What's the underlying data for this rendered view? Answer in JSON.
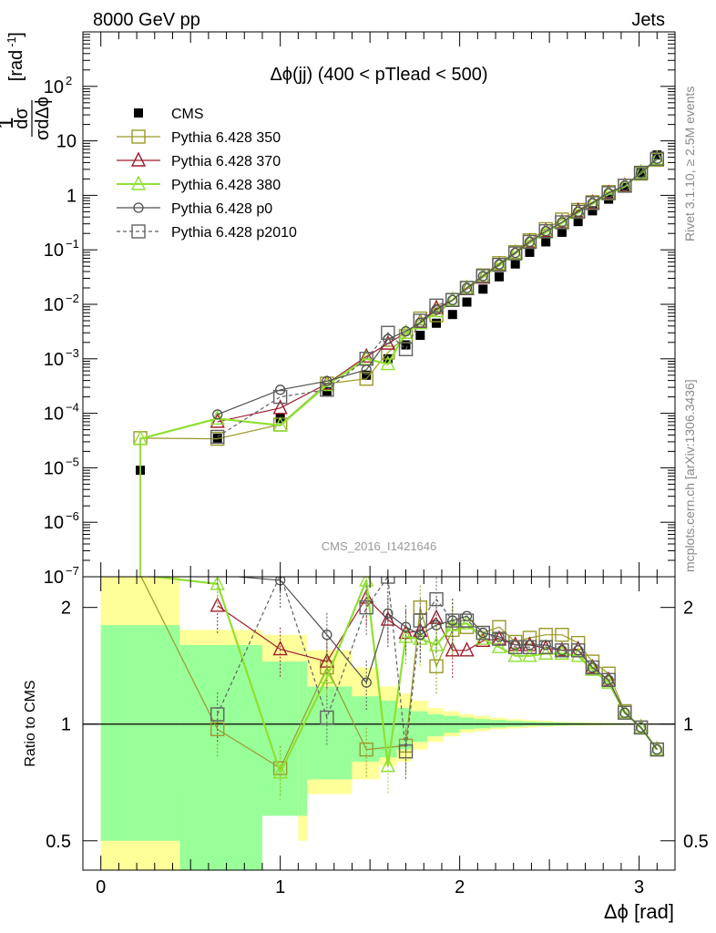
{
  "header": {
    "left": "8000 GeV pp",
    "right": "Jets"
  },
  "side_labels": {
    "rivet": "Rivet 3.1.10, ≥ 2.5M events",
    "mcplots": "mcplots.cern.ch [arXiv:1306.3436]"
  },
  "watermark": "CMS_2016_I1421646",
  "colors": {
    "cms": "#000000",
    "p350": "#9a9a2a",
    "p370": "#a01c2e",
    "p380": "#8fe030",
    "p0": "#505050",
    "p2010": "#606060",
    "band_green": "#99ff99",
    "band_yellow": "#ffff99"
  },
  "chart_data": [
    {
      "type": "line",
      "panel": "main",
      "title": "Δϕ(jj) (400 < pTlead <  500)",
      "xlabel": "Δϕ [rad]",
      "ylabel": "1/σ dσ/dΔϕ [rad⁻¹]",
      "ylabel_parts": {
        "one": "1",
        "dsigma": "dσ",
        "sigma_dphi": "σdΔϕ",
        "units": "[rad",
        "units_exp": "-1",
        "units_close": "]"
      },
      "xlim": [
        -0.1,
        3.2
      ],
      "ylim": [
        1e-07,
        1000
      ],
      "log_y": true,
      "grid": false,
      "legend_position": "top-left",
      "x_ticks": [
        "0",
        "1",
        "2",
        "3"
      ],
      "y_ticks": [
        {
          "value": 1e-07,
          "base": "10",
          "exp": "−7"
        },
        {
          "value": 1e-06,
          "base": "10",
          "exp": "−6"
        },
        {
          "value": 1e-05,
          "base": "10",
          "exp": "−5"
        },
        {
          "value": 0.0001,
          "base": "10",
          "exp": "−4"
        },
        {
          "value": 0.001,
          "base": "10",
          "exp": "−3"
        },
        {
          "value": 0.01,
          "base": "10",
          "exp": "−2"
        },
        {
          "value": 0.1,
          "base": "10",
          "exp": "−1"
        },
        {
          "value": 1,
          "base": "1",
          "exp": ""
        },
        {
          "value": 10,
          "base": "10",
          "exp": ""
        },
        {
          "value": 100,
          "base": "10",
          "exp": "2"
        }
      ],
      "x": [
        0.22,
        0.65,
        1.0,
        1.26,
        1.48,
        1.6,
        1.7,
        1.78,
        1.87,
        1.96,
        2.04,
        2.13,
        2.22,
        2.31,
        2.39,
        2.48,
        2.57,
        2.66,
        2.74,
        2.83,
        2.92,
        3.01,
        3.1
      ],
      "series": [
        {
          "name": "CMS",
          "key": "cms",
          "marker": "filled-square",
          "values": [
            9e-06,
            3.5e-05,
            8e-05,
            0.00025,
            0.0005,
            0.001,
            0.0018,
            0.0027,
            0.0045,
            0.0065,
            0.011,
            0.019,
            0.032,
            0.055,
            0.09,
            0.14,
            0.21,
            0.33,
            0.52,
            0.85,
            1.4,
            2.6,
            5.5
          ]
        },
        {
          "name": "Pythia 6.428 350",
          "key": "p350",
          "marker": "open-square",
          "values": [
            3.5e-05,
            3.4e-05,
            6.2e-05,
            0.00035,
            0.00043,
            0.0013,
            0.0026,
            0.0055,
            0.0063,
            0.012,
            0.02,
            0.034,
            0.057,
            0.091,
            0.15,
            0.24,
            0.36,
            0.54,
            0.75,
            1.15,
            1.5,
            2.5,
            4.5
          ]
        },
        {
          "name": "Pythia 6.428 370",
          "key": "p370",
          "marker": "open-triangle",
          "values": [
            null,
            7e-05,
            0.000125,
            0.00035,
            0.0011,
            0.0019,
            0.003,
            0.0047,
            0.0085,
            0.012,
            0.019,
            0.031,
            0.053,
            0.088,
            0.14,
            0.22,
            0.32,
            0.52,
            0.73,
            1.1,
            1.5,
            2.6,
            4.7
          ]
        },
        {
          "name": "Pythia 6.428 380",
          "key": "p380",
          "marker": "open-triangle",
          "values": [
            3.4e-05,
            8e-05,
            6e-05,
            0.00033,
            0.001,
            0.0008,
            0.003,
            0.0045,
            0.0075,
            0.012,
            0.02,
            0.032,
            0.052,
            0.086,
            0.135,
            0.21,
            0.31,
            0.48,
            0.7,
            1.05,
            1.45,
            2.6,
            4.7
          ]
        },
        {
          "name": "Pythia 6.428 p0",
          "key": "p0",
          "marker": "open-circle",
          "values": [
            null,
            9.5e-05,
            0.00027,
            0.00039,
            0.00063,
            0.0023,
            0.0032,
            0.0046,
            0.008,
            0.012,
            0.02,
            0.033,
            0.054,
            0.088,
            0.14,
            0.22,
            0.32,
            0.5,
            0.72,
            1.1,
            1.5,
            2.6,
            4.7
          ]
        },
        {
          "name": "Pythia 6.428 p2010",
          "key": "p2010",
          "marker": "open-square",
          "dashed": true,
          "values": [
            null,
            3.7e-05,
            0.0002,
            0.00027,
            0.001,
            0.003,
            0.0015,
            0.005,
            0.0095,
            0.012,
            0.02,
            0.033,
            0.053,
            0.086,
            0.14,
            0.22,
            0.32,
            0.5,
            0.72,
            1.1,
            1.5,
            2.6,
            4.7
          ]
        }
      ]
    },
    {
      "type": "line",
      "panel": "ratio",
      "ylabel": "Ratio to CMS",
      "xlabel": "Δϕ [rad]",
      "xlim": [
        -0.1,
        3.2
      ],
      "ylim": [
        0.42,
        2.4
      ],
      "log_y": true,
      "y_ticks": [
        "0.5",
        "1",
        "2"
      ],
      "x_ticks": [
        "0",
        "1",
        "2",
        "3"
      ],
      "bands": {
        "edges": [
          0.0,
          0.44,
          0.9,
          1.1,
          1.15,
          1.4,
          1.55,
          1.65,
          1.73,
          1.82,
          1.91,
          2.0,
          2.08,
          2.17,
          2.26,
          2.35,
          2.43,
          2.52,
          2.61,
          2.7,
          2.79,
          2.88,
          2.97,
          3.14
        ],
        "green": [
          0.5,
          0.42,
          0.58,
          0.58,
          0.72,
          0.8,
          0.82,
          0.86,
          0.9,
          0.93,
          0.95,
          0.97,
          0.975,
          0.98,
          0.985,
          0.99,
          0.99,
          0.992,
          0.994,
          0.995,
          0.996,
          0.997,
          0.998
        ],
        "green_hi": [
          1.8,
          1.6,
          1.45,
          1.45,
          1.25,
          1.18,
          1.15,
          1.1,
          1.08,
          1.06,
          1.05,
          1.04,
          1.03,
          1.025,
          1.02,
          1.015,
          1.012,
          1.01,
          1.008,
          1.006,
          1.005,
          1.004,
          1.003
        ],
        "yellow": [
          0.42,
          0.66,
          0.65,
          0.5,
          0.66,
          0.72,
          0.78,
          0.8,
          0.86,
          0.9,
          0.93,
          0.95,
          0.96,
          0.97,
          0.975,
          0.98,
          0.985,
          0.988,
          0.99,
          0.992,
          0.994,
          0.995,
          0.996
        ],
        "yellow_hi": [
          2.4,
          1.75,
          1.7,
          1.7,
          1.55,
          1.4,
          1.25,
          1.2,
          1.15,
          1.1,
          1.08,
          1.06,
          1.05,
          1.04,
          1.03,
          1.025,
          1.02,
          1.015,
          1.012,
          1.01,
          1.008,
          1.006,
          1.004
        ]
      },
      "series": [
        {
          "name": "Pythia 6.428 350",
          "key": "p350",
          "values": [
            3.9,
            0.97,
            0.77,
            1.4,
            0.86,
            null,
            0.88,
            2.0,
            1.41,
            1.75,
            1.78,
            1.72,
            1.78,
            1.63,
            1.67,
            1.7,
            1.7,
            1.62,
            1.45,
            1.35,
            1.08,
            0.98,
            0.86
          ]
        },
        {
          "name": "Pythia 6.428 370",
          "key": "p370",
          "values": [
            null,
            2.02,
            1.56,
            1.45,
            2.12,
            1.86,
            1.72,
            1.74,
            1.88,
            1.55,
            1.55,
            1.64,
            1.66,
            1.6,
            1.6,
            1.57,
            1.55,
            1.56,
            1.4,
            1.3,
            1.07,
            0.98,
            0.86
          ]
        },
        {
          "name": "Pythia 6.428 380",
          "key": "p380",
          "values": [
            3.8,
            2.3,
            0.75,
            1.32,
            2.35,
            0.78,
            1.68,
            1.66,
            1.6,
            1.8,
            1.82,
            1.66,
            1.58,
            1.5,
            1.5,
            1.52,
            1.52,
            1.5,
            1.38,
            1.28,
            1.07,
            0.98,
            0.86
          ]
        },
        {
          "name": "Pythia 6.428 p0",
          "key": "p0",
          "values": [
            null,
            2.7,
            2.35,
            1.7,
            1.28,
            1.93,
            1.78,
            1.7,
            1.8,
            1.85,
            1.9,
            1.72,
            1.68,
            1.6,
            1.6,
            1.6,
            1.55,
            1.55,
            1.4,
            1.3,
            1.07,
            0.98,
            0.86
          ]
        },
        {
          "name": "Pythia 6.428 p2010",
          "key": "p2010",
          "values": [
            null,
            1.06,
            2.5,
            1.04,
            2.0,
            2.4,
            0.85,
            1.85,
            2.1,
            1.85,
            1.85,
            1.72,
            1.66,
            1.58,
            1.58,
            1.58,
            1.55,
            1.55,
            1.4,
            1.3,
            1.07,
            0.98,
            0.86
          ]
        }
      ]
    }
  ]
}
